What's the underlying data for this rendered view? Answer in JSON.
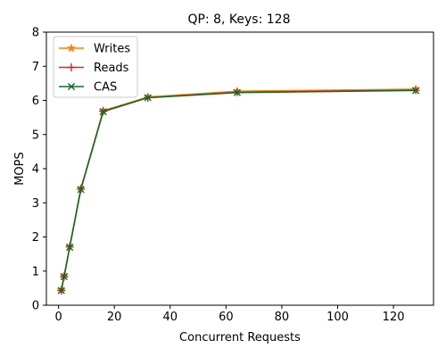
{
  "chart_data": {
    "type": "line",
    "title": "QP: 8, Keys: 128",
    "xlabel": "Concurrent Requests",
    "ylabel": "MOPS",
    "xlim": [
      -4.35,
      134.35
    ],
    "ylim": [
      0,
      8
    ],
    "xticks": [
      0,
      20,
      40,
      60,
      80,
      100,
      120
    ],
    "yticks": [
      0,
      1,
      2,
      3,
      4,
      5,
      6,
      7,
      8
    ],
    "grid": false,
    "legend_position": "top-left",
    "x": [
      1,
      2,
      4,
      8,
      16,
      32,
      64,
      128
    ],
    "series": [
      {
        "name": "Writes",
        "marker": "star",
        "color": "#ff7f0e",
        "values": [
          0.45,
          0.86,
          1.72,
          3.42,
          5.7,
          6.1,
          6.27,
          6.33
        ]
      },
      {
        "name": "Reads",
        "marker": "plus",
        "color": "#d62728",
        "values": [
          0.43,
          0.84,
          1.71,
          3.4,
          5.68,
          6.08,
          6.24,
          6.3
        ]
      },
      {
        "name": "CAS",
        "marker": "x",
        "color": "#0b6b2a",
        "values": [
          0.43,
          0.84,
          1.7,
          3.39,
          5.67,
          6.08,
          6.23,
          6.29
        ]
      }
    ]
  }
}
